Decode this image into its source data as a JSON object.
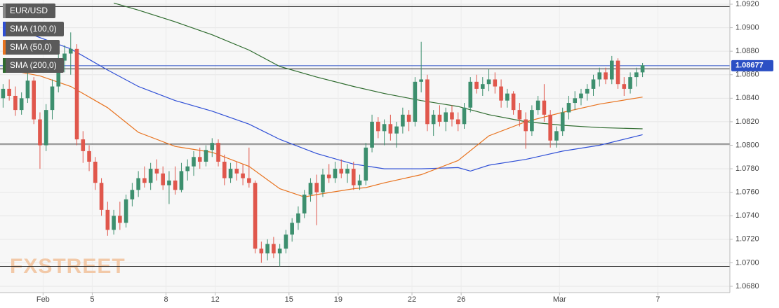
{
  "chart_data": {
    "type": "candlestick",
    "watermark": "FXSTREET",
    "ylim": [
      1.068,
      1.092
    ],
    "yticks": [
      {
        "value": 1.068,
        "label": "1.0680"
      },
      {
        "value": 1.07,
        "label": "1.0700"
      },
      {
        "value": 1.072,
        "label": "1.0720"
      },
      {
        "value": 1.074,
        "label": "1.0740"
      },
      {
        "value": 1.076,
        "label": "1.0760"
      },
      {
        "value": 1.078,
        "label": "1.0780"
      },
      {
        "value": 1.08,
        "label": "1.0800"
      },
      {
        "value": 1.082,
        "label": "1.0820"
      },
      {
        "value": 1.084,
        "label": "1.0840"
      },
      {
        "value": 1.086,
        "label": "1.0860"
      },
      {
        "value": 1.088,
        "label": "1.0880"
      },
      {
        "value": 1.09,
        "label": "1.0900"
      },
      {
        "value": 1.092,
        "label": "1.0920"
      }
    ],
    "xlim": [
      0,
      118.7
    ],
    "xticks": [
      {
        "value": 7,
        "label": "Feb"
      },
      {
        "value": 15,
        "label": "5"
      },
      {
        "value": 27,
        "label": "8"
      },
      {
        "value": 35,
        "label": "12"
      },
      {
        "value": 47,
        "label": "15"
      },
      {
        "value": 55,
        "label": "19"
      },
      {
        "value": 67,
        "label": "22"
      },
      {
        "value": 75,
        "label": "26"
      },
      {
        "value": 91,
        "label": "Mar"
      },
      {
        "value": 107,
        "label": "7"
      }
    ],
    "grid": true,
    "last_price": 1.08677,
    "last_price_color": "#2b4fc4",
    "hlines": [
      {
        "value": 1.0918,
        "color": "#222222"
      },
      {
        "value": 1.0865,
        "color": "#222222"
      },
      {
        "value": 1.0801,
        "color": "#222222"
      },
      {
        "value": 1.0697,
        "color": "#222222"
      }
    ],
    "series": [
      {
        "name": "EUR/USD",
        "color": "#8a8a8a",
        "up_color": "#3d8f6e",
        "down_color": "#e0574c",
        "ohlc": [
          [
            1.084,
            1.0852,
            1.0832,
            1.0848
          ],
          [
            1.0848,
            1.0856,
            1.0838,
            1.0842
          ],
          [
            1.0842,
            1.085,
            1.0825,
            1.083
          ],
          [
            1.083,
            1.0845,
            1.0826,
            1.084
          ],
          [
            1.084,
            1.0862,
            1.0836,
            1.0855
          ],
          [
            1.0855,
            1.0858,
            1.0818,
            1.0822
          ],
          [
            1.0822,
            1.0828,
            1.078,
            1.08
          ],
          [
            1.08,
            1.0835,
            1.0795,
            1.083
          ],
          [
            1.083,
            1.0856,
            1.0822,
            1.085
          ],
          [
            1.085,
            1.088,
            1.0845,
            1.0872
          ],
          [
            1.0872,
            1.0885,
            1.0862,
            1.0878
          ],
          [
            1.0878,
            1.0896,
            1.086,
            1.0882
          ],
          [
            1.0882,
            1.0886,
            1.08,
            1.0805
          ],
          [
            1.0805,
            1.0812,
            1.0785,
            1.0795
          ],
          [
            1.0795,
            1.08,
            1.0778,
            1.0786
          ],
          [
            1.0786,
            1.079,
            1.0762,
            1.0768
          ],
          [
            1.0768,
            1.0772,
            1.074,
            1.0745
          ],
          [
            1.0745,
            1.0752,
            1.0723,
            1.0728
          ],
          [
            1.0728,
            1.0745,
            1.0724,
            1.074
          ],
          [
            1.074,
            1.0752,
            1.0728,
            1.0734
          ],
          [
            1.0734,
            1.0758,
            1.073,
            1.0754
          ],
          [
            1.0754,
            1.0768,
            1.0748,
            1.0762
          ],
          [
            1.0762,
            1.0778,
            1.0756,
            1.0772
          ],
          [
            1.0772,
            1.0782,
            1.0764,
            1.0768
          ],
          [
            1.0768,
            1.0785,
            1.0762,
            1.078
          ],
          [
            1.078,
            1.0788,
            1.077,
            1.0776
          ],
          [
            1.0776,
            1.0782,
            1.0762,
            1.0766
          ],
          [
            1.0766,
            1.0778,
            1.075,
            1.077
          ],
          [
            1.077,
            1.0782,
            1.0758,
            1.0762
          ],
          [
            1.0762,
            1.0785,
            1.076,
            1.0778
          ],
          [
            1.0778,
            1.0788,
            1.077,
            1.0782
          ],
          [
            1.0782,
            1.0795,
            1.0774,
            1.079
          ],
          [
            1.079,
            1.0798,
            1.078,
            1.0786
          ],
          [
            1.0786,
            1.08,
            1.0782,
            1.0796
          ],
          [
            1.0796,
            1.0806,
            1.079,
            1.0802
          ],
          [
            1.0802,
            1.0805,
            1.0782,
            1.0786
          ],
          [
            1.0786,
            1.0792,
            1.0766,
            1.0772
          ],
          [
            1.0772,
            1.0785,
            1.0768,
            1.078
          ],
          [
            1.078,
            1.0786,
            1.077,
            1.0776
          ],
          [
            1.0776,
            1.0784,
            1.0766,
            1.0772
          ],
          [
            1.0772,
            1.0798,
            1.0764,
            1.0768
          ],
          [
            1.0768,
            1.077,
            1.0708,
            1.0712
          ],
          [
            1.0712,
            1.0718,
            1.07,
            1.0708
          ],
          [
            1.0708,
            1.072,
            1.0702,
            1.0716
          ],
          [
            1.0716,
            1.0722,
            1.0704,
            1.0708
          ],
          [
            1.0708,
            1.0716,
            1.0697,
            1.0712
          ],
          [
            1.0712,
            1.0728,
            1.0708,
            1.0724
          ],
          [
            1.0724,
            1.0738,
            1.0718,
            1.0734
          ],
          [
            1.0734,
            1.0748,
            1.0728,
            1.0742
          ],
          [
            1.0742,
            1.0762,
            1.0738,
            1.0758
          ],
          [
            1.0758,
            1.0772,
            1.0752,
            1.0768
          ],
          [
            1.0768,
            1.0775,
            1.0732,
            1.076
          ],
          [
            1.076,
            1.078,
            1.0756,
            1.0775
          ],
          [
            1.0775,
            1.0784,
            1.0768,
            1.0772
          ],
          [
            1.0772,
            1.0786,
            1.0768,
            1.078
          ],
          [
            1.078,
            1.0788,
            1.0772,
            1.0776
          ],
          [
            1.0776,
            1.0784,
            1.0768,
            1.078
          ],
          [
            1.078,
            1.0786,
            1.0762,
            1.0766
          ],
          [
            1.0766,
            1.0775,
            1.0762,
            1.077
          ],
          [
            1.077,
            1.0802,
            1.0766,
            1.0798
          ],
          [
            1.0798,
            1.0826,
            1.0794,
            1.082
          ],
          [
            1.082,
            1.0824,
            1.0806,
            1.0812
          ],
          [
            1.0812,
            1.0822,
            1.08,
            1.0818
          ],
          [
            1.0818,
            1.0826,
            1.0804,
            1.081
          ],
          [
            1.081,
            1.082,
            1.0798,
            1.0816
          ],
          [
            1.0816,
            1.0832,
            1.081,
            1.0826
          ],
          [
            1.0826,
            1.083,
            1.0812,
            1.082
          ],
          [
            1.082,
            1.0858,
            1.0816,
            1.0854
          ],
          [
            1.0854,
            1.0888,
            1.0845,
            1.0856
          ],
          [
            1.0856,
            1.086,
            1.0812,
            1.0818
          ],
          [
            1.0818,
            1.083,
            1.0808,
            1.0826
          ],
          [
            1.0826,
            1.0834,
            1.0816,
            1.082
          ],
          [
            1.082,
            1.0832,
            1.0812,
            1.0828
          ],
          [
            1.0828,
            1.0834,
            1.0816,
            1.0822
          ],
          [
            1.0822,
            1.0828,
            1.0812,
            1.0818
          ],
          [
            1.0818,
            1.0836,
            1.0814,
            1.0832
          ],
          [
            1.0832,
            1.0858,
            1.0828,
            1.0854
          ],
          [
            1.0854,
            1.086,
            1.0844,
            1.0848
          ],
          [
            1.0848,
            1.0858,
            1.0842,
            1.0852
          ],
          [
            1.0852,
            1.0865,
            1.0846,
            1.0856
          ],
          [
            1.0856,
            1.0862,
            1.0844,
            1.085
          ],
          [
            1.085,
            1.0856,
            1.0832,
            1.0838
          ],
          [
            1.0838,
            1.0848,
            1.0832,
            1.0844
          ],
          [
            1.0844,
            1.0846,
            1.0826,
            1.083
          ],
          [
            1.083,
            1.0836,
            1.0816,
            1.0822
          ],
          [
            1.0822,
            1.0828,
            1.0797,
            1.0812
          ],
          [
            1.0812,
            1.0834,
            1.0808,
            1.083
          ],
          [
            1.083,
            1.0842,
            1.0826,
            1.0838
          ],
          [
            1.0838,
            1.0852,
            1.082,
            1.0826
          ],
          [
            1.0826,
            1.083,
            1.0798,
            1.0804
          ],
          [
            1.0804,
            1.0816,
            1.0798,
            1.0812
          ],
          [
            1.0812,
            1.0832,
            1.0808,
            1.0828
          ],
          [
            1.0828,
            1.0842,
            1.0822,
            1.0836
          ],
          [
            1.0836,
            1.0846,
            1.083,
            1.084
          ],
          [
            1.084,
            1.0848,
            1.0834,
            1.0844
          ],
          [
            1.0844,
            1.0852,
            1.0838,
            1.0848
          ],
          [
            1.0848,
            1.086,
            1.0842,
            1.0856
          ],
          [
            1.0856,
            1.0866,
            1.085,
            1.0862
          ],
          [
            1.0862,
            1.0866,
            1.0852,
            1.0856
          ],
          [
            1.0856,
            1.0876,
            1.0852,
            1.0872
          ],
          [
            1.0872,
            1.0874,
            1.0848,
            1.0852
          ],
          [
            1.0852,
            1.0858,
            1.0842,
            1.0848
          ],
          [
            1.0848,
            1.0862,
            1.0844,
            1.0858
          ],
          [
            1.0858,
            1.0866,
            1.085,
            1.0862
          ],
          [
            1.0862,
            1.087,
            1.0858,
            1.0868
          ]
        ]
      }
    ],
    "lines": [
      {
        "name": "SMA (100,0)",
        "color": "#2f4fd6",
        "x": [
          0,
          11,
          17,
          22,
          28,
          34,
          40,
          45,
          51,
          57,
          62,
          68,
          74,
          76,
          79,
          85,
          91,
          97,
          104
        ],
        "values": [
          1.0903,
          1.0882,
          1.0864,
          1.085,
          1.0838,
          1.0829,
          1.0818,
          1.0805,
          1.0793,
          1.0784,
          1.078,
          1.078,
          1.0781,
          1.0778,
          1.0783,
          1.0788,
          1.0795,
          1.08,
          1.0809
        ]
      },
      {
        "name": "SMA (50,0)",
        "color": "#e8731f",
        "x": [
          0,
          6,
          11,
          17,
          22,
          28,
          34,
          40,
          45,
          49,
          51,
          57,
          59,
          62,
          68,
          74,
          79,
          85,
          91,
          97,
          104
        ],
        "values": [
          1.0865,
          1.0859,
          1.085,
          1.0832,
          1.0811,
          1.0799,
          1.0794,
          1.0782,
          1.0763,
          1.0756,
          1.0758,
          1.0763,
          1.0764,
          1.0768,
          1.0775,
          1.0787,
          1.0808,
          1.082,
          1.0828,
          1.0835,
          1.0841
        ]
      },
      {
        "name": "SMA (200,0)",
        "color": "#2e6b2e",
        "x": [
          18,
          22,
          28,
          34,
          40,
          45,
          51,
          57,
          62,
          68,
          74,
          79,
          85,
          91,
          97,
          104
        ],
        "values": [
          1.0921,
          1.0915,
          1.0905,
          1.0894,
          1.0881,
          1.0867,
          1.0858,
          1.085,
          1.0844,
          1.0838,
          1.0833,
          1.0826,
          1.082,
          1.0817,
          1.0815,
          1.0814
        ]
      }
    ]
  }
}
